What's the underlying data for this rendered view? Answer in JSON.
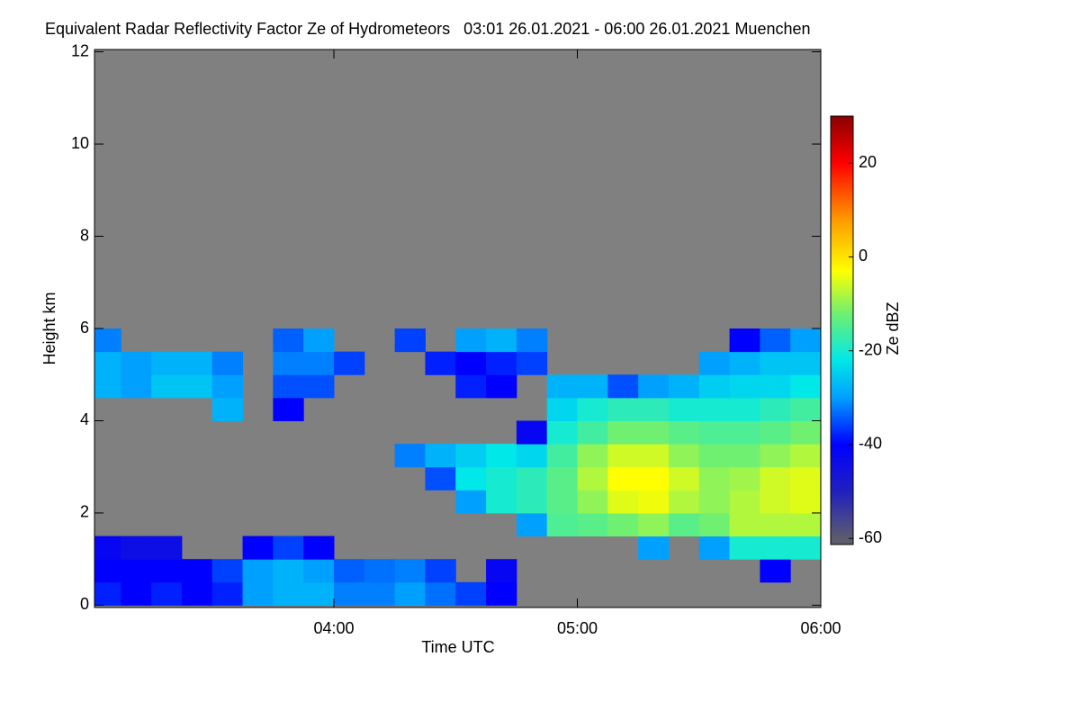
{
  "chart_data": {
    "type": "heatmap",
    "title": "Equivalent Radar Reflectivity Factor Ze of Hydrometeors   03:01 26.01.2021 - 06:00 26.01.2021 Muenchen",
    "x_label": "Time UTC",
    "y_label": "Height km",
    "colorbar_label": "Ze dBZ",
    "xlim": [
      3.0167,
      6.0
    ],
    "xticks": [
      {
        "value": 4,
        "label": "04:00"
      },
      {
        "value": 5,
        "label": "05:00"
      },
      {
        "value": 6,
        "label": "06:00"
      }
    ],
    "ylim": [
      -0.05,
      12.05
    ],
    "yticks": [
      0,
      2,
      4,
      6,
      8,
      10,
      12
    ],
    "zlim": [
      -61.3,
      30
    ],
    "zticks": [
      -60,
      -40,
      -20,
      0,
      20
    ],
    "background": "#808080",
    "colormap": [
      {
        "value": -60,
        "color": "#5c5c6e"
      },
      {
        "value": -50,
        "color": "#2020c0"
      },
      {
        "value": -40,
        "color": "#0000ff"
      },
      {
        "value": -30,
        "color": "#00a0ff"
      },
      {
        "value": -22,
        "color": "#00e8e8"
      },
      {
        "value": -12,
        "color": "#70f070"
      },
      {
        "value": -3,
        "color": "#ffff00"
      },
      {
        "value": 8,
        "color": "#ff9900"
      },
      {
        "value": 20,
        "color": "#ff0000"
      },
      {
        "value": 30,
        "color": "#8b0000"
      }
    ],
    "x": [
      3.0625,
      3.1875,
      3.3125,
      3.4375,
      3.5625,
      3.6875,
      3.8125,
      3.9375,
      4.0625,
      4.1875,
      4.3125,
      4.4375,
      4.5625,
      4.6875,
      4.8125,
      4.9375,
      5.0625,
      5.1875,
      5.3125,
      5.4375,
      5.5625,
      5.6875,
      5.8125,
      5.9375
    ],
    "y": [
      0.25,
      0.75,
      1.25,
      1.75,
      2.25,
      2.75,
      3.25,
      3.75,
      4.25,
      4.75,
      5.25,
      5.75
    ],
    "z": [
      [
        -38,
        -40,
        -38,
        -40,
        -38,
        -30,
        -28,
        -28,
        -32,
        -32,
        -30,
        -33,
        -36,
        -40,
        null,
        null,
        null,
        null,
        null,
        null,
        null,
        null,
        null,
        null
      ],
      [
        -40,
        -40,
        -40,
        -40,
        -36,
        -30,
        -28,
        -30,
        -34,
        -33,
        -32,
        -36,
        null,
        -42,
        null,
        null,
        null,
        null,
        null,
        null,
        null,
        null,
        -40,
        null
      ],
      [
        -42,
        -44,
        -44,
        null,
        null,
        -40,
        -36,
        -40,
        null,
        null,
        null,
        null,
        null,
        null,
        null,
        null,
        null,
        null,
        -30,
        null,
        -30,
        -20,
        -20,
        -20
      ],
      [
        null,
        null,
        null,
        null,
        null,
        null,
        null,
        null,
        null,
        null,
        null,
        null,
        null,
        null,
        -30,
        -15,
        -14,
        -12,
        -10,
        -14,
        -12,
        -8,
        -8,
        -8
      ],
      [
        null,
        null,
        null,
        null,
        null,
        null,
        null,
        null,
        null,
        null,
        null,
        null,
        -30,
        -20,
        -18,
        -14,
        -10,
        -5,
        -4,
        -8,
        -10,
        -8,
        -6,
        -5
      ],
      [
        null,
        null,
        null,
        null,
        null,
        null,
        null,
        null,
        null,
        null,
        null,
        -35,
        -22,
        -20,
        -18,
        -14,
        -8,
        -3,
        -3,
        -6,
        -10,
        -9,
        -6,
        -5
      ],
      [
        null,
        null,
        null,
        null,
        null,
        null,
        null,
        null,
        null,
        null,
        -32,
        -28,
        -25,
        -22,
        -24,
        -16,
        -10,
        -6,
        -6,
        -10,
        -12,
        -12,
        -10,
        -8
      ],
      [
        null,
        null,
        null,
        null,
        null,
        null,
        null,
        null,
        null,
        null,
        null,
        null,
        null,
        null,
        -42,
        -20,
        -16,
        -12,
        -12,
        -14,
        -15,
        -15,
        -14,
        -12
      ],
      [
        null,
        null,
        null,
        null,
        -28,
        null,
        -40,
        null,
        null,
        null,
        null,
        null,
        null,
        null,
        null,
        -24,
        -20,
        -18,
        -18,
        -20,
        -20,
        -20,
        -18,
        -16
      ],
      [
        -28,
        -30,
        -26,
        -26,
        -30,
        null,
        -35,
        -35,
        null,
        null,
        null,
        null,
        -38,
        -40,
        null,
        -28,
        -28,
        -35,
        -30,
        -28,
        -25,
        -24,
        -24,
        -22
      ],
      [
        -28,
        -30,
        -28,
        -28,
        -32,
        null,
        -32,
        -32,
        -36,
        null,
        null,
        -38,
        -40,
        -38,
        -36,
        null,
        null,
        null,
        null,
        null,
        -30,
        -28,
        -26,
        -26
      ],
      [
        -32,
        null,
        null,
        null,
        null,
        null,
        -34,
        -30,
        null,
        null,
        -36,
        null,
        -30,
        -28,
        -32,
        null,
        null,
        null,
        null,
        null,
        null,
        -40,
        -34,
        -30
      ]
    ]
  }
}
